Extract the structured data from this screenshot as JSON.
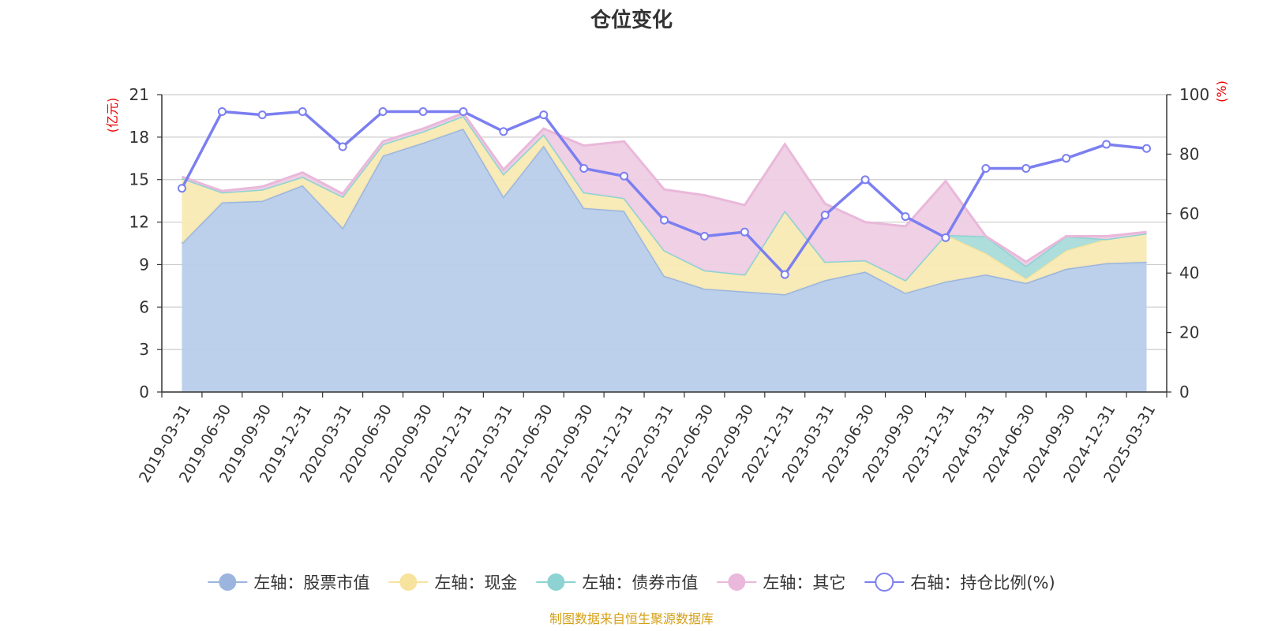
{
  "chart_data": {
    "type": "area",
    "title": "仓位变化",
    "left_axis_unit": "(亿元)",
    "right_axis_unit": "(%)",
    "ylim_left": [
      0,
      21
    ],
    "yticks_left": [
      0,
      3,
      6,
      9,
      12,
      15,
      18,
      21
    ],
    "ylim_right": [
      0,
      100
    ],
    "yticks_right": [
      0,
      20,
      40,
      60,
      80,
      100
    ],
    "categories": [
      "2019-03-31",
      "2019-06-30",
      "2019-09-30",
      "2019-12-31",
      "2020-03-31",
      "2020-06-30",
      "2020-09-30",
      "2020-12-31",
      "2021-03-31",
      "2021-06-30",
      "2021-09-30",
      "2021-12-31",
      "2022-03-31",
      "2022-06-30",
      "2022-09-30",
      "2022-12-31",
      "2023-03-31",
      "2023-06-30",
      "2023-09-30",
      "2023-12-31",
      "2024-03-31",
      "2024-06-30",
      "2024-09-30",
      "2024-12-31",
      "2025-03-31"
    ],
    "series": [
      {
        "name": "左轴：股票市值",
        "axis": "left",
        "kind": "stacked-area",
        "color": "#9bb5de",
        "fill": "#b8cdea",
        "values": [
          10.5,
          13.4,
          13.5,
          14.6,
          11.6,
          16.7,
          17.6,
          18.6,
          13.8,
          17.4,
          13.0,
          12.8,
          8.2,
          7.3,
          7.1,
          6.9,
          7.9,
          8.5,
          7.0,
          7.8,
          8.3,
          7.7,
          8.7,
          9.1,
          9.2
        ]
      },
      {
        "name": "左轴：现金",
        "axis": "left",
        "kind": "stacked-area",
        "color": "#f7e39e",
        "fill": "#f8eab4",
        "values": [
          4.6,
          0.7,
          0.8,
          0.6,
          2.2,
          0.8,
          0.8,
          0.9,
          1.6,
          0.8,
          1.1,
          0.9,
          1.8,
          1.3,
          1.2,
          5.9,
          1.3,
          0.8,
          0.9,
          3.3,
          1.5,
          0.3,
          1.3,
          1.7,
          2.0
        ]
      },
      {
        "name": "左轴：债券市值",
        "axis": "left",
        "kind": "stacked-area",
        "color": "#8dd3d3",
        "fill": "#a9dcd9",
        "values": [
          0,
          0,
          0,
          0,
          0,
          0,
          0,
          0,
          0,
          0,
          0,
          0,
          0,
          0,
          0,
          0,
          0,
          0,
          0,
          0,
          1.2,
          0.9,
          1.0,
          0,
          0
        ]
      },
      {
        "name": "左轴：其它",
        "axis": "left",
        "kind": "stacked-area",
        "color": "#e9b8da",
        "fill": "#efcde4",
        "values": [
          0.1,
          0.1,
          0.2,
          0.3,
          0.2,
          0.2,
          0.2,
          0.2,
          0.3,
          0.4,
          3.3,
          4.0,
          4.3,
          5.3,
          4.9,
          4.7,
          4.1,
          2.7,
          3.8,
          3.8,
          0.0,
          0.3,
          0.0,
          0.2,
          0.1
        ]
      },
      {
        "name": "右轴：持仓比例(%)",
        "axis": "right",
        "kind": "line",
        "color": "#7b7ff0",
        "values": [
          68.5,
          94.3,
          93.2,
          94.3,
          82.5,
          94.3,
          94.3,
          94.3,
          87.6,
          93.2,
          75.2,
          72.6,
          57.8,
          52.4,
          53.8,
          39.5,
          59.5,
          71.4,
          59.0,
          51.9,
          75.2,
          75.2,
          78.6,
          83.3,
          81.9
        ]
      }
    ]
  },
  "footer": {
    "source": "制图数据来自恒生聚源数据库"
  }
}
